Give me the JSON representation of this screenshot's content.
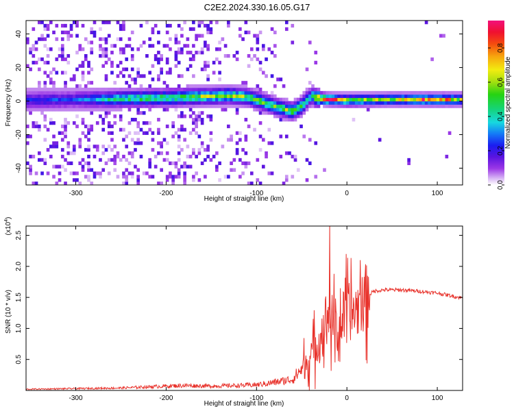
{
  "title": "C2E2.2024.330.16.05.G17",
  "chart_data": [
    {
      "type": "heatmap",
      "xlabel": "Height of straight line (km)",
      "ylabel": "Frequency (Hz)",
      "xlim": [
        -355,
        128
      ],
      "ylim": [
        -50,
        48
      ],
      "xticks": [
        -300,
        -200,
        -100,
        0,
        100
      ],
      "yticks": [
        -40,
        -20,
        0,
        20,
        40
      ],
      "colorbar": {
        "label": "Normalized spectral amplitude",
        "range": [
          0.0,
          0.96
        ],
        "ticks": [
          0.0,
          0.2,
          0.4,
          0.6,
          0.8
        ]
      },
      "ridge": {
        "x": [
          -355,
          -300,
          -250,
          -200,
          -150,
          -130,
          -110,
          -90,
          -75,
          -60,
          -50,
          -42,
          -38,
          -35,
          -20,
          0,
          50,
          100,
          128
        ],
        "y": [
          0.5,
          1.0,
          1.5,
          2.0,
          3.0,
          3.5,
          2.5,
          -1.0,
          -4.0,
          -6.0,
          -3.0,
          2.0,
          3.0,
          2.0,
          1.0,
          0.5,
          1.0,
          1.0,
          1.0
        ],
        "amplitude": [
          0.2,
          0.2,
          0.45,
          0.5,
          0.55,
          0.55,
          0.55,
          0.5,
          0.5,
          0.55,
          0.55,
          0.4,
          0.45,
          0.75,
          0.85,
          0.6,
          0.55,
          0.8,
          0.5
        ]
      }
    },
    {
      "type": "line",
      "xlabel": "Height of straight line (km)",
      "ylabel": "SNR (10 * v/v)",
      "yscale_label": "(x10^4)",
      "xlim": [
        -355,
        128
      ],
      "ylim": [
        0,
        2.65
      ],
      "xticks": [
        -300,
        -200,
        -100,
        0,
        100
      ],
      "yticks": [
        0.5,
        1.0,
        1.5,
        2.0,
        2.5
      ],
      "series": [
        {
          "x": [
            -355,
            -300,
            -250,
            -200,
            -180,
            -150,
            -120,
            -100,
            -80,
            -60,
            -50,
            -40,
            -30,
            -25,
            -20,
            -15,
            -10,
            -5,
            0,
            10,
            20,
            30,
            40,
            60,
            80,
            100,
            128
          ],
          "values": [
            0.02,
            0.03,
            0.04,
            0.07,
            0.08,
            0.07,
            0.08,
            0.09,
            0.13,
            0.18,
            0.35,
            0.55,
            0.85,
            1.05,
            1.35,
            1.05,
            0.95,
            1.15,
            1.25,
            1.3,
            1.5,
            1.6,
            1.62,
            1.62,
            1.6,
            1.57,
            1.49
          ]
        }
      ],
      "peak": {
        "x": -19,
        "y": 2.65
      },
      "color": "#e8312a"
    }
  ]
}
